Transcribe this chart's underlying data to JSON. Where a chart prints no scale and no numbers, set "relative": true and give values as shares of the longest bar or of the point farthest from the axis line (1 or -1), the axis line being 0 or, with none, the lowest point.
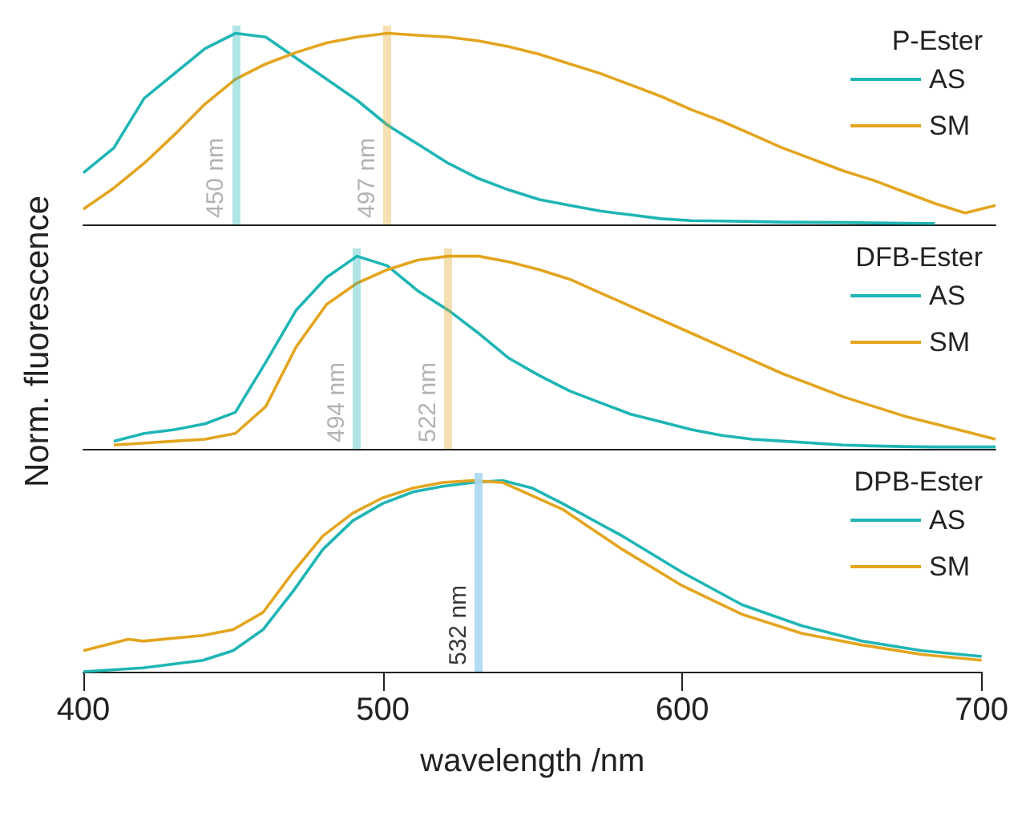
{
  "chart_data": [
    {
      "type": "line",
      "relative": true,
      "legend_title": "P-Ester",
      "legend": "top right",
      "tick_labels": false,
      "annotations": [
        "450 nm",
        "497 nm"
      ],
      "categories": [
        null,
        null,
        null,
        null,
        null,
        null,
        null,
        null,
        null,
        null,
        null,
        null,
        null,
        null,
        null,
        null,
        null,
        null,
        null,
        null,
        null,
        null,
        null,
        null,
        null,
        null,
        null,
        null,
        null,
        null,
        null
      ],
      "series": [
        {
          "name": "AS",
          "color": "#1fb5b5",
          "values": [
            0.27,
            0.4,
            0.66,
            0.79,
            0.92,
            1.0,
            0.98,
            0.87,
            0.76,
            0.65,
            0.52,
            0.42,
            0.32,
            0.24,
            0.18,
            0.13,
            0.1,
            0.07,
            0.05,
            0.03,
            0.02,
            0.018,
            0.015,
            0.012,
            0.011,
            0.01,
            0.008,
            0.006,
            0.005,
            null,
            null
          ]
        },
        {
          "name": "SM",
          "color": "#e3a51f",
          "values": [
            0.08,
            0.19,
            0.32,
            0.47,
            0.63,
            0.76,
            0.84,
            0.9,
            0.95,
            0.98,
            1.0,
            0.99,
            0.98,
            0.96,
            0.93,
            0.89,
            0.84,
            0.79,
            0.73,
            0.67,
            0.6,
            0.54,
            0.47,
            0.4,
            0.34,
            0.28,
            0.23,
            0.17,
            0.11,
            0.06,
            0.1
          ]
        }
      ]
    },
    {
      "type": "line",
      "relative": true,
      "legend_title": "DFB-Ester",
      "legend": "top right",
      "tick_labels": false,
      "ylabel": "Norm. fluorescence",
      "annotations": [
        "494 nm",
        "522 nm"
      ],
      "categories": [
        null,
        null,
        null,
        null,
        null,
        null,
        null,
        null,
        null,
        null,
        null,
        null,
        null,
        null,
        null,
        null,
        null,
        null,
        null,
        null,
        null,
        null,
        null,
        null,
        null,
        null,
        null,
        null,
        null,
        null,
        null
      ],
      "series": [
        {
          "name": "AS",
          "color": "#1fb5b5",
          "values": [
            null,
            0.04,
            0.08,
            0.1,
            0.13,
            0.19,
            0.45,
            0.72,
            0.89,
            1.0,
            0.95,
            0.82,
            0.72,
            0.6,
            0.47,
            0.38,
            0.3,
            0.24,
            0.18,
            0.14,
            0.1,
            0.07,
            0.05,
            0.04,
            0.03,
            0.02,
            0.015,
            0.012,
            0.01,
            0.01,
            0.01
          ]
        },
        {
          "name": "SM",
          "color": "#e3a51f",
          "values": [
            null,
            0.02,
            0.03,
            0.04,
            0.05,
            0.08,
            0.22,
            0.53,
            0.75,
            0.86,
            0.93,
            0.98,
            1.0,
            1.0,
            0.97,
            0.93,
            0.88,
            0.81,
            0.74,
            0.67,
            0.6,
            0.53,
            0.46,
            0.39,
            0.33,
            0.27,
            0.22,
            0.17,
            0.13,
            0.09,
            0.05
          ]
        }
      ]
    },
    {
      "type": "line",
      "relative": true,
      "legend_title": "DPB-Ester",
      "legend": "top right",
      "tick_labels": "x",
      "xlim": [
        400,
        700
      ],
      "xticks": [
        400,
        500,
        600,
        700
      ],
      "xlabel": "wavelength /nm",
      "series": [
        {
          "name": "AS",
          "color": "#1fb5b5",
          "x": [
            400,
            420,
            440,
            450,
            460,
            470,
            480,
            490,
            500,
            510,
            520,
            530,
            540,
            550,
            560,
            580,
            600,
            620,
            640,
            660,
            680,
            700
          ],
          "values": [
            0,
            0.02,
            0.06,
            0.11,
            0.22,
            0.42,
            0.64,
            0.79,
            0.88,
            0.94,
            0.97,
            0.99,
            1.0,
            0.96,
            0.88,
            0.71,
            0.52,
            0.35,
            0.24,
            0.16,
            0.11,
            0.08
          ]
        },
        {
          "name": "SM",
          "color": "#e3a51f",
          "x": [
            400,
            415,
            420,
            440,
            450,
            460,
            470,
            480,
            490,
            500,
            510,
            520,
            530,
            540,
            560,
            580,
            600,
            620,
            640,
            660,
            680,
            700
          ],
          "values": [
            0.11,
            0.17,
            0.16,
            0.19,
            0.22,
            0.31,
            0.52,
            0.71,
            0.83,
            0.91,
            0.96,
            0.99,
            1.0,
            0.99,
            0.85,
            0.64,
            0.45,
            0.3,
            0.2,
            0.14,
            0.09,
            0.06
          ]
        }
      ],
      "ref_lines": [
        {
          "axis": "x",
          "value": 532,
          "label": "532 nm",
          "color": "#a9d8f2"
        }
      ]
    }
  ]
}
